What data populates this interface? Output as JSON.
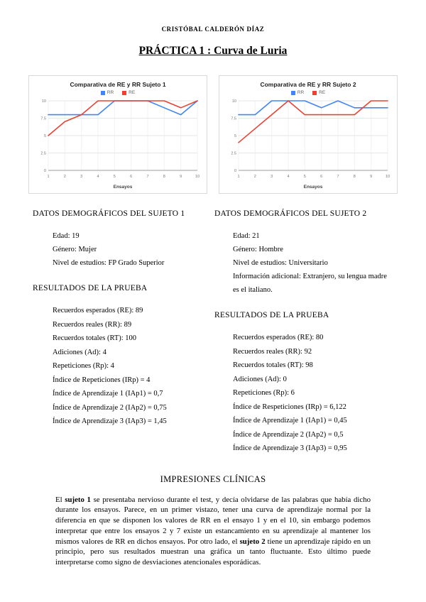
{
  "header": {
    "author": "CRISTÓBAL CALDERÓN DÍAZ",
    "title": "PRÁCTICA 1 : Curva de Luria"
  },
  "chart_data": [
    {
      "type": "line",
      "title": "Comparativa de RE y RR Sujeto 1",
      "x": [
        1,
        2,
        3,
        4,
        5,
        6,
        7,
        8,
        9,
        10
      ],
      "xlabel": "Ensayos",
      "ylim": [
        0,
        10
      ],
      "yticks": [
        0,
        2.5,
        5,
        7.5,
        10
      ],
      "grid": true,
      "legend_position": "top",
      "series": [
        {
          "name": "RR",
          "color": "#4285f4",
          "values": [
            8,
            8,
            8,
            8,
            10,
            10,
            10,
            9,
            8,
            10
          ]
        },
        {
          "name": "RE",
          "color": "#ea4335",
          "values": [
            5,
            7,
            8,
            10,
            10,
            10,
            10,
            10,
            9,
            10
          ]
        }
      ]
    },
    {
      "type": "line",
      "title": "Comparativa de RE y RR Sujeto 2",
      "x": [
        1,
        2,
        3,
        4,
        5,
        6,
        7,
        8,
        9,
        10
      ],
      "xlabel": "Ensayos",
      "ylim": [
        0,
        10
      ],
      "yticks": [
        0,
        2.5,
        5,
        7.5,
        10
      ],
      "grid": true,
      "legend_position": "top",
      "series": [
        {
          "name": "RR",
          "color": "#4285f4",
          "values": [
            8,
            8,
            10,
            10,
            10,
            9,
            10,
            9,
            9,
            9
          ]
        },
        {
          "name": "RE",
          "color": "#ea4335",
          "values": [
            4,
            6,
            8,
            10,
            8,
            8,
            8,
            8,
            10,
            10
          ]
        }
      ]
    }
  ],
  "subject1": {
    "heading": "DATOS DEMOGRÁFICOS DEL SUJETO 1",
    "demographics": [
      "Edad: 19",
      "Género: Mujer",
      "Nivel de estudios: FP Grado Superior"
    ],
    "results_heading": "RESULTADOS DE LA PRUEBA",
    "results": [
      "Recuerdos esperados (RE): 89",
      "Recuerdos reales (RR): 89",
      "Recuerdos totales (RT): 100",
      "Adiciones (Ad): 4",
      "Repeticiones (Rp): 4",
      "Índice de Repeticiones (IRp) = 4",
      "Índice de Aprendizaje 1 (IAp1) = 0,7",
      "Índice de Aprendizaje 2 (IAp2) = 0,75",
      "Índice de Aprendizaje 3 (IAp3) = 1,45"
    ]
  },
  "subject2": {
    "heading": "DATOS DEMOGRÁFICOS DEL SUJETO 2",
    "demographics": [
      "Edad: 21",
      "Género: Hombre",
      "Nivel de estudios: Universitario",
      "Información adicional: Extranjero, su lengua madre es el italiano."
    ],
    "results_heading": "RESULTADOS DE LA PRUEBA",
    "results": [
      "Recuerdos esperados (RE): 80",
      "Recuerdos reales (RR): 92",
      "Recuerdos totales (RT): 98",
      "Adiciones (Ad): 0",
      "Repeticiones (Rp): 6",
      "Índice de Respeticiones  (IRp) = 6,122",
      "Índice de Aprendizaje 1 (IAp1) = 0,45",
      "Índice de Aprendizaje 2 (IAp2) = 0,5",
      "Índice de Aprendizaje 3 (IAp3) = 0,95"
    ]
  },
  "impresiones": {
    "heading": "IMPRESIONES CLÍNICAS",
    "segments": [
      {
        "text": "El ",
        "bold": false
      },
      {
        "text": "sujeto 1",
        "bold": true
      },
      {
        "text": " se presentaba nervioso durante el test, y decía olvidarse de las palabras que había dicho durante los ensayos. Parece, en un primer vistazo, tener una curva de aprendizaje normal por la diferencia en que se disponen los valores de RR en el ensayo 1 y en el 10, sin embargo podemos interpretar que entre los ensayos 2 y 7 existe un estancamiento en su aprendizaje al mantener los mismos valores de RR en dichos ensayos. Por otro lado, el ",
        "bold": false
      },
      {
        "text": "sujeto 2",
        "bold": true
      },
      {
        "text": " tiene un aprendizaje rápido en un principio, pero sus resultados muestran una gráfica un tanto fluctuante. Esto último puede interpretarse como signo de desviaciones atencionales esporádicas.",
        "bold": false
      }
    ]
  }
}
